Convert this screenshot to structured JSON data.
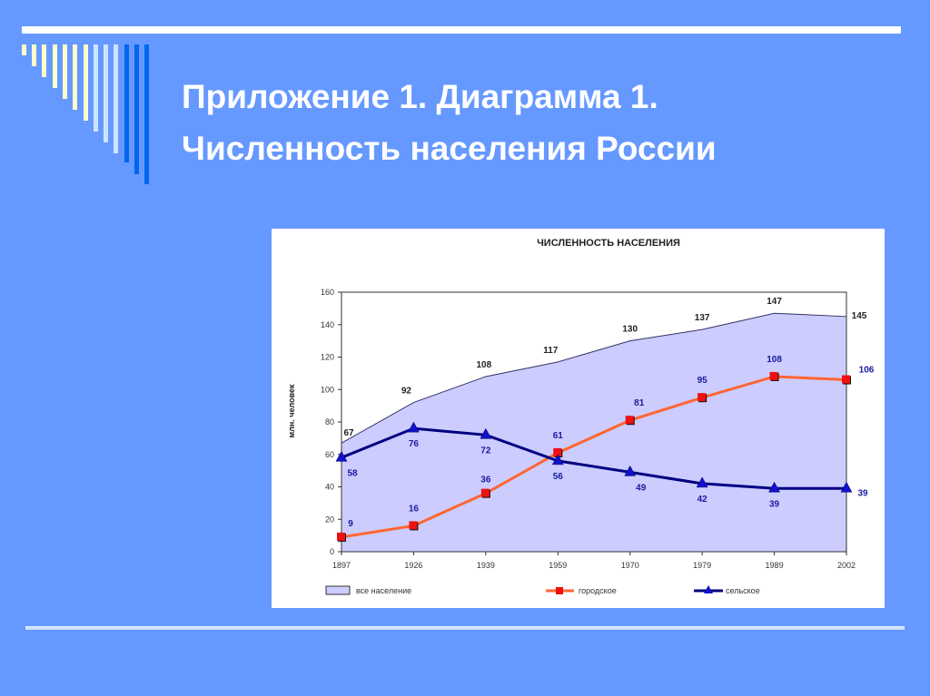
{
  "slide": {
    "title_line1": "Приложение 1. Диаграмма 1.",
    "title_line2": "Численность населения России",
    "background_color": "#6699ff"
  },
  "chart_data": {
    "type": "line",
    "title": "ЧИСЛЕННОСТЬ НАСЕЛЕНИЯ",
    "xlabel": "",
    "ylabel": "млн. человек",
    "ylim": [
      0,
      160
    ],
    "yticks": [
      0,
      20,
      40,
      60,
      80,
      100,
      120,
      140,
      160
    ],
    "categories": [
      "1897",
      "1926",
      "1939",
      "1959",
      "1970",
      "1979",
      "1989",
      "2002"
    ],
    "series": [
      {
        "name": "все население",
        "type": "area",
        "color": "#ccccff",
        "values": [
          67,
          92,
          108,
          117,
          130,
          137,
          147,
          145
        ]
      },
      {
        "name": "городское",
        "type": "line",
        "color": "#ff6633",
        "marker": "square",
        "values": [
          9,
          16,
          36,
          61,
          81,
          95,
          108,
          106
        ]
      },
      {
        "name": "сельское",
        "type": "line",
        "color": "#000080",
        "marker": "triangle",
        "values": [
          58,
          76,
          72,
          56,
          49,
          42,
          39,
          39
        ]
      }
    ],
    "legend_position": "bottom",
    "grid": false
  }
}
